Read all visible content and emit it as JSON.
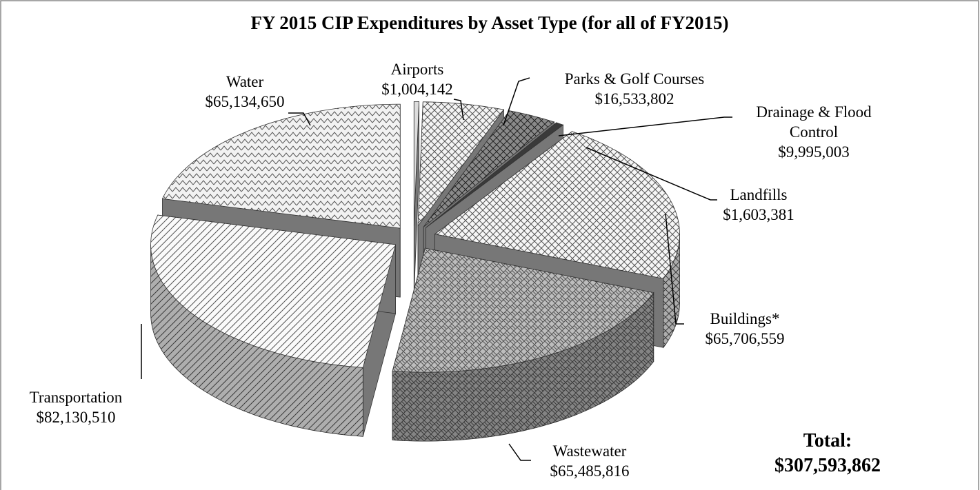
{
  "chart_data": {
    "type": "pie3d",
    "title": "FY 2015 CIP Expenditures by Asset Type (for all of FY2015)",
    "categories": [
      "Airports",
      "Parks & Golf Courses",
      "Drainage & Flood Control",
      "Landfills",
      "Buildings*",
      "Wastewater",
      "Transportation",
      "Water"
    ],
    "values": [
      1004142,
      16533802,
      9995003,
      1603381,
      65706559,
      65485816,
      82130510,
      65134650
    ],
    "value_labels": [
      "$1,004,142",
      "$16,533,802",
      "$9,995,003",
      "$1,603,381",
      "$65,706,559",
      "$65,485,816",
      "$82,130,510",
      "$65,134,650"
    ],
    "colors": [
      "#dddddd",
      "#f4f4f4",
      "#8a8a8a",
      "#3a3a3a",
      "#f6f6f6",
      "#bdbdbd",
      "#fafafa",
      "#f2f2f2"
    ],
    "total": {
      "label": "Total:",
      "value": "$307,593,862"
    }
  }
}
